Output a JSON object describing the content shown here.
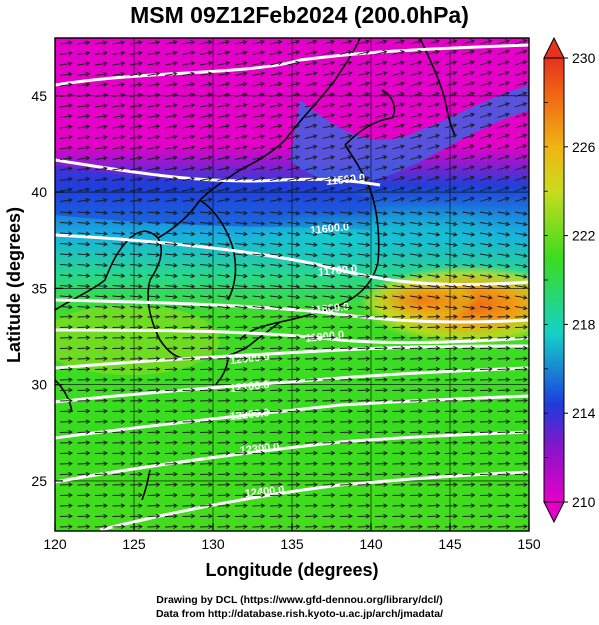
{
  "title": "MSM 09Z12Feb2024 (200.0hPa)",
  "xaxis": {
    "label": "Longitude (degrees)",
    "ticks": [
      "120",
      "125",
      "130",
      "135",
      "140",
      "145",
      "150"
    ]
  },
  "yaxis": {
    "label": "Latitude  (degrees)",
    "ticks": [
      "45",
      "40",
      "35",
      "30",
      "25"
    ]
  },
  "colorbar": {
    "ticks": [
      "230",
      "226",
      "222",
      "218",
      "214",
      "210"
    ],
    "min": 210,
    "max": 230
  },
  "contour_labels": [
    "11500.0",
    "11600.0",
    "11700.0",
    "11800.0",
    "11900.0",
    "12000.0",
    "12100.0",
    "12200.0",
    "12300.0",
    "12400.0"
  ],
  "footer": {
    "line1": "Drawing by DCL (https://www.gfd-dennou.org/library/dcl/)",
    "line2": "Data from http://database.rish.kyoto-u.ac.jp/arch/jmadata/"
  },
  "colors": {
    "magenta": "#e400c8",
    "blue": "#1e3cdc",
    "cyan": "#14d2c8",
    "green": "#3cdc1e",
    "yellow": "#dcdc1e",
    "orange": "#f08c14",
    "red": "#e6321e",
    "contour": "#ffffff",
    "wind_vector": "#1a1a1a"
  }
}
